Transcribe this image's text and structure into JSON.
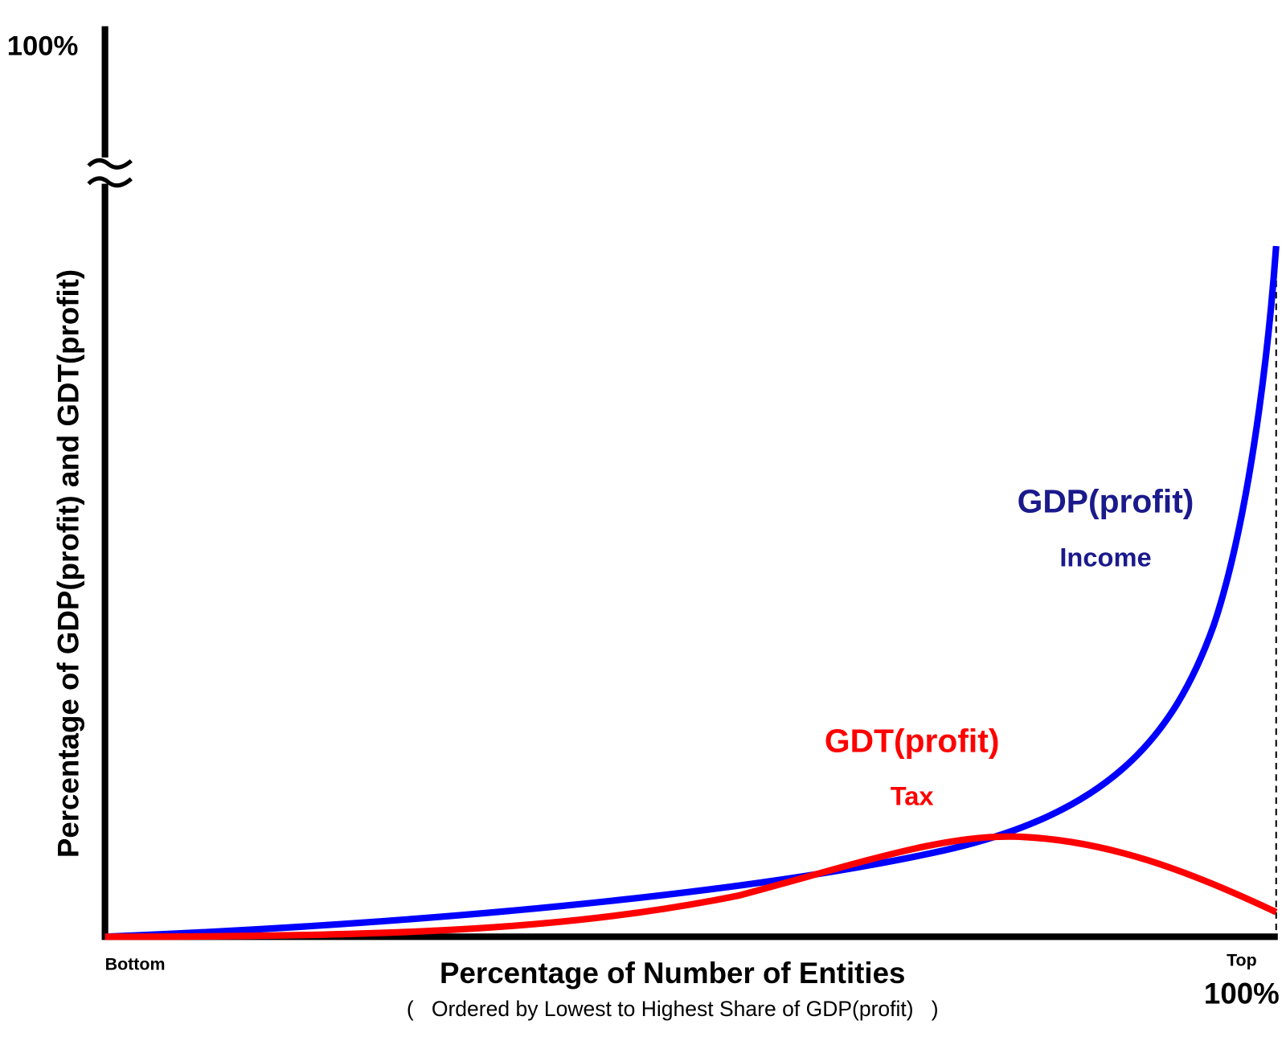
{
  "y_axis": {
    "top_label": "100%",
    "title": "Percentage of GDP(profit) and GDT(profit)"
  },
  "x_axis": {
    "start_label": "Bottom",
    "end_label": "Top",
    "end_value_label": "100%",
    "title": "Percentage of Number of Entities",
    "subtitle": "(   Ordered by Lowest to Highest Share of GDP(profit)   )"
  },
  "curves": [
    {
      "name": "GDP(profit)",
      "description": "Income"
    },
    {
      "name": "GDT(profit)",
      "description": "Tax"
    }
  ]
}
